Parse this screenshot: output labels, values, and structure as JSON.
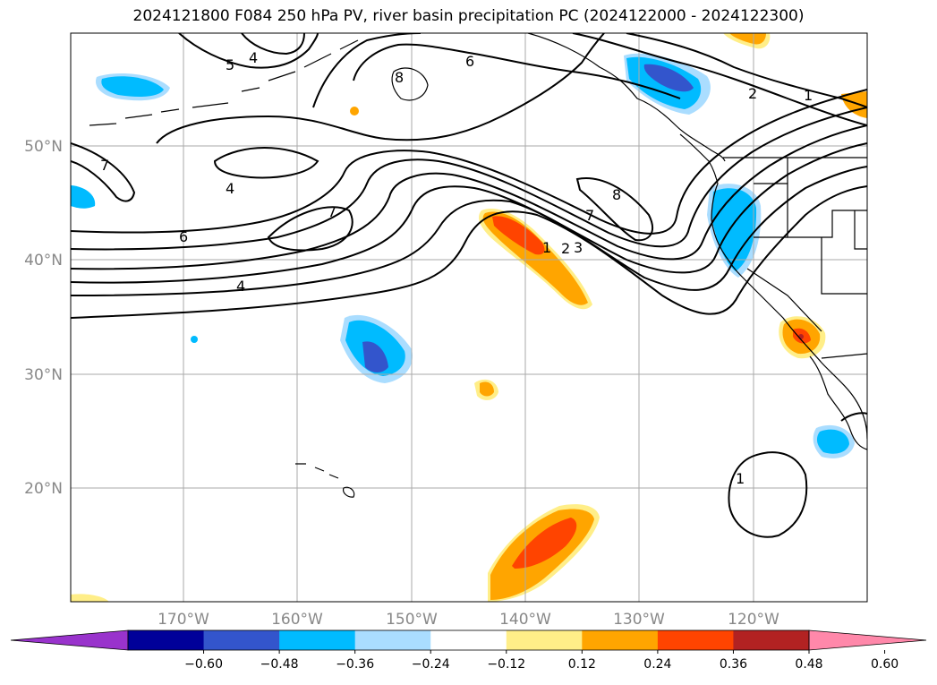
{
  "title": "2024121800 F084 250 hPa PV, river basin precipitation PC (2024122000 - 2024122300)",
  "lon_ticks": [
    "170°W",
    "160°W",
    "150°W",
    "140°W",
    "130°W",
    "120°W"
  ],
  "lat_ticks": [
    "50°N",
    "40°N",
    "30°N",
    "20°N"
  ],
  "contour_labels": [
    "5",
    "4",
    "8",
    "6",
    "2",
    "1",
    "7",
    "4",
    "7",
    "6",
    "4",
    "8",
    "7",
    "1",
    "2",
    "3",
    "1"
  ],
  "colorbar": {
    "levels": [
      "−0.60",
      "−0.48",
      "−0.36",
      "−0.24",
      "−0.12",
      "0.12",
      "0.24",
      "0.36",
      "0.48",
      "0.60"
    ],
    "colors": [
      "#9933cc",
      "#000099",
      "#3355cc",
      "#00bbff",
      "#aaddff",
      "#ffffff",
      "#ffee88",
      "#ffa500",
      "#ff4400",
      "#b22222",
      "#ff88aa"
    ]
  },
  "shading_colors": {
    "light_blue": "#aaddff",
    "blue": "#00bbff",
    "dark_blue": "#3355cc",
    "yellow": "#ffee88",
    "orange": "#ffa500",
    "red_orange": "#ff4400",
    "dark_red": "#b22222"
  }
}
